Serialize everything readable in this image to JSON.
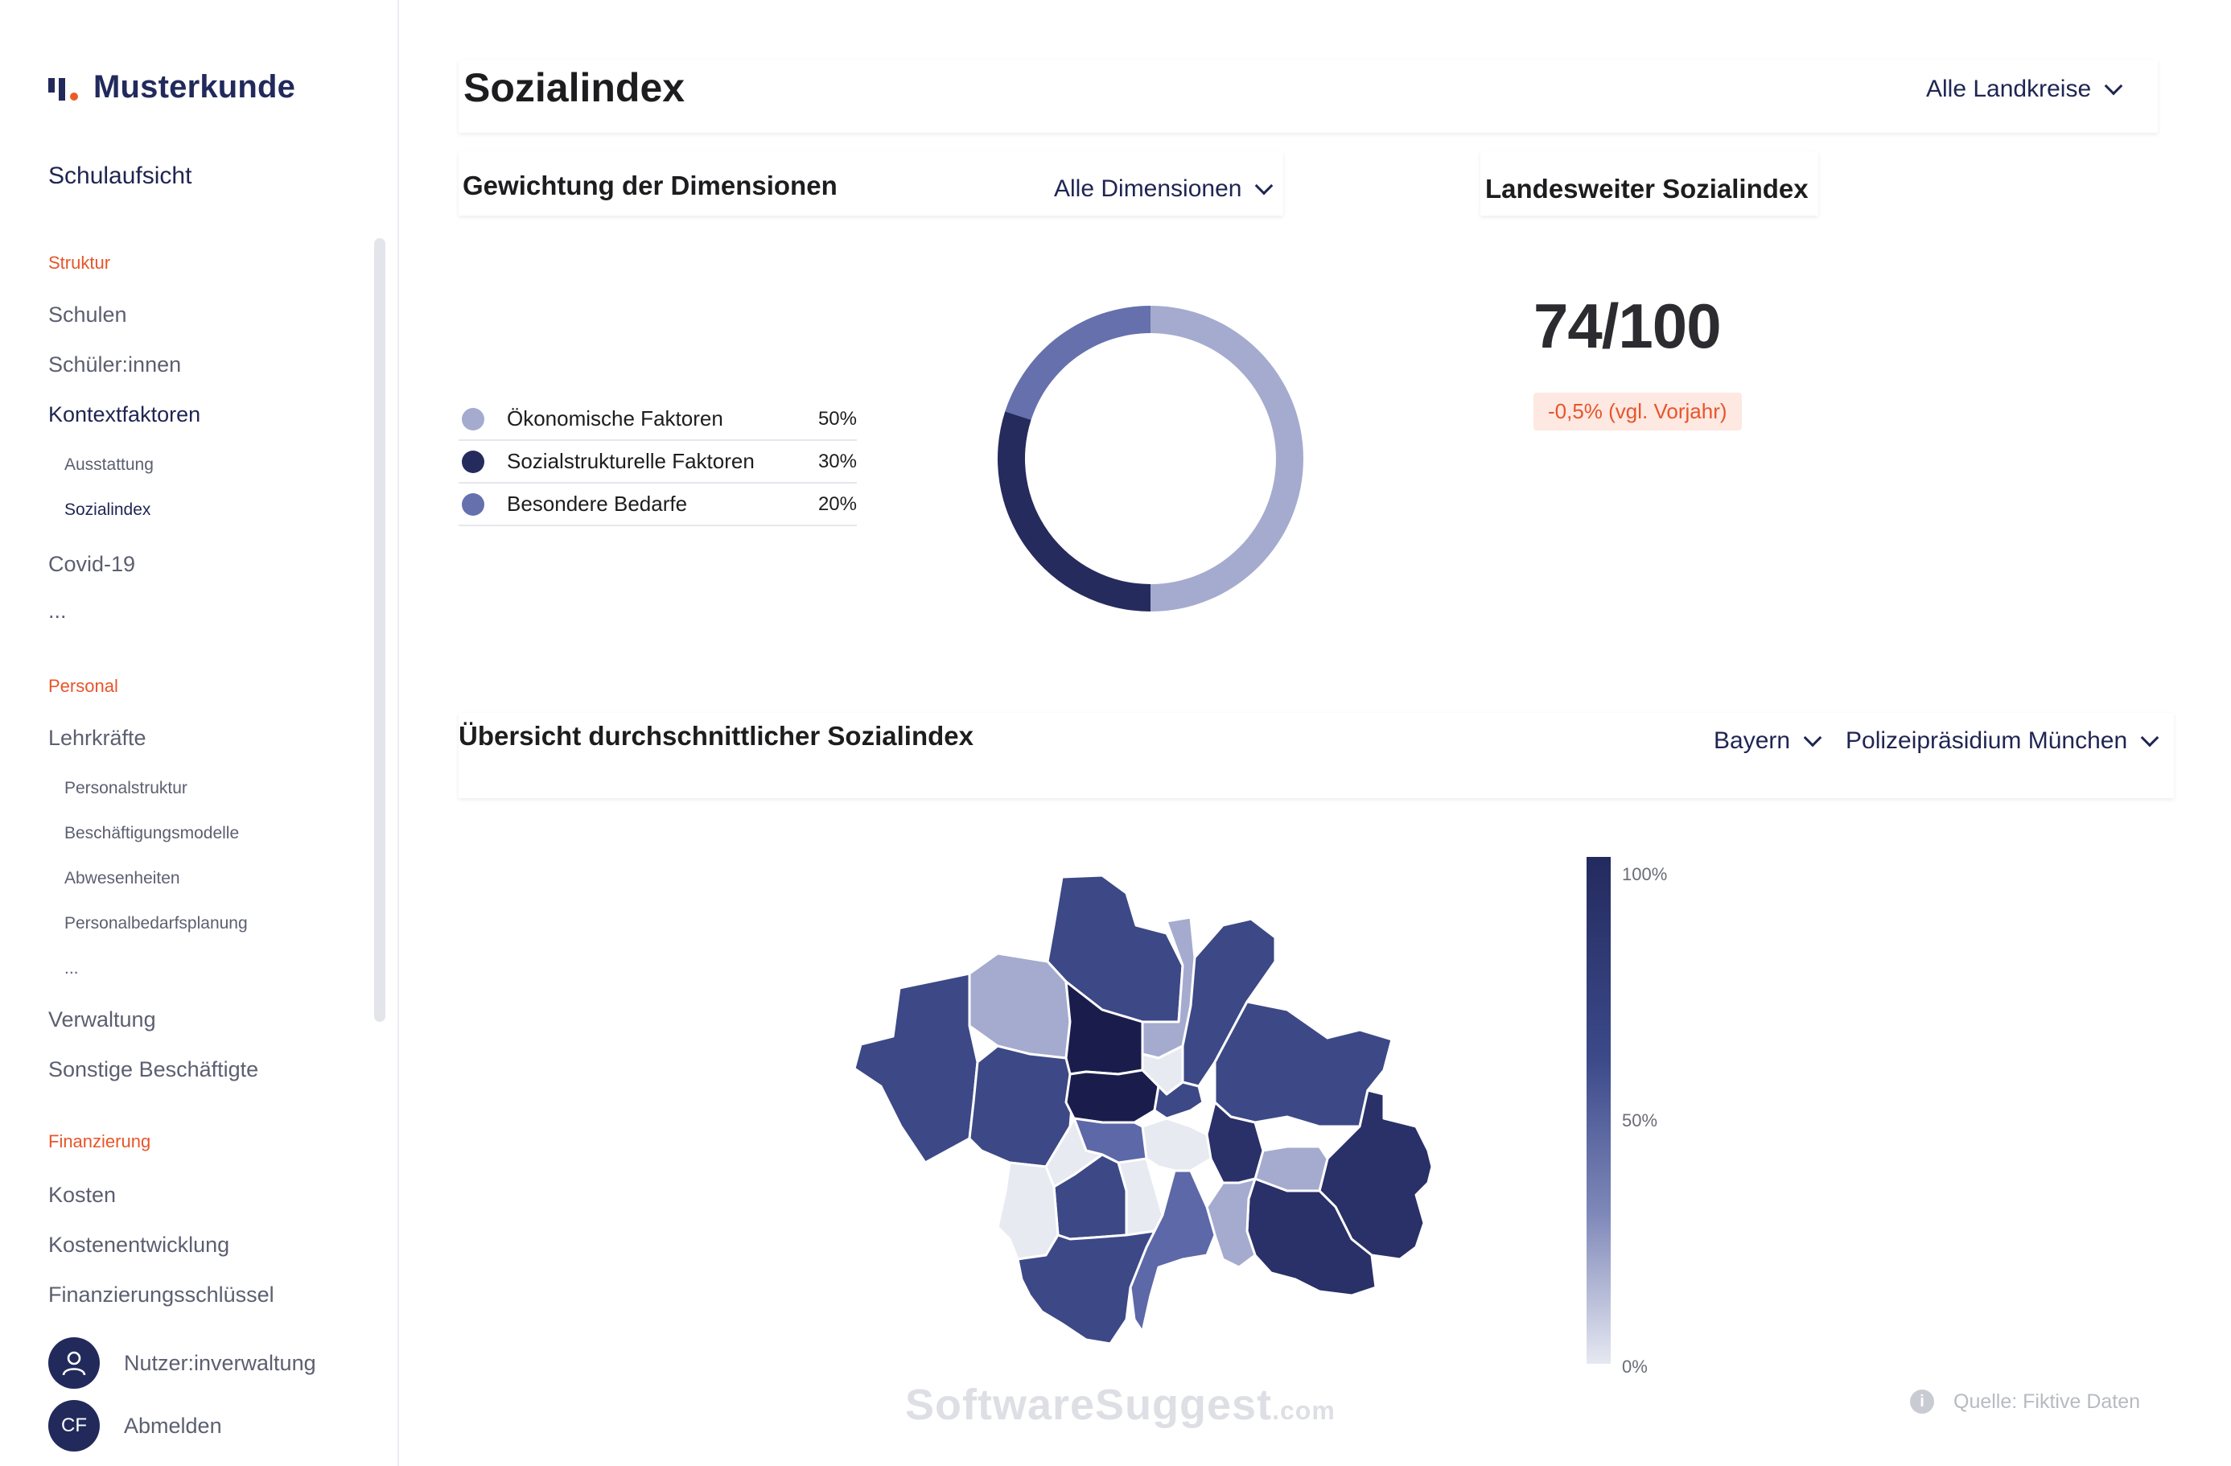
{
  "app": {
    "brand": "Musterkunde",
    "subtitle": "Schulaufsicht"
  },
  "sidebar": {
    "sections": [
      {
        "label": "Struktur",
        "items": [
          {
            "label": "Schulen"
          },
          {
            "label": "Schüler:innen"
          },
          {
            "label": "Kontextfaktoren",
            "subitems": [
              "Ausstattung",
              "Sozialindex"
            ]
          },
          {
            "label": "Covid-19"
          },
          {
            "label": "..."
          }
        ]
      },
      {
        "label": "Personal",
        "items": [
          {
            "label": "Lehrkräfte",
            "subitems": [
              "Personalstruktur",
              "Beschäftigungsmodelle",
              "Abwesenheiten",
              "Personalbedarfsplanung",
              "..."
            ]
          },
          {
            "label": "Verwaltung"
          },
          {
            "label": "Sonstige Beschäftigte"
          }
        ]
      },
      {
        "label": "Finanzierung",
        "items": [
          {
            "label": "Kosten"
          },
          {
            "label": "Kostenentwicklung"
          },
          {
            "label": "Finanzierungsschlüssel"
          }
        ]
      }
    ],
    "user": {
      "user_admin": "Nutzer:inverwaltung",
      "logout": "Abmelden",
      "initials": "CF"
    }
  },
  "header": {
    "title": "Sozialindex",
    "district_filter": "Alle Landkreise"
  },
  "weights": {
    "title": "Gewichtung der Dimensionen",
    "filter": "Alle Dimensionen",
    "legend": [
      {
        "name": "Ökonomische Faktoren",
        "value": "50%",
        "color": "#a5abcf"
      },
      {
        "name": "Sozialstrukturelle Faktoren",
        "value": "30%",
        "color": "#262b5e"
      },
      {
        "name": "Besondere Bedarfe",
        "value": "20%",
        "color": "#6570ad"
      }
    ]
  },
  "chart_data": {
    "type": "pie",
    "categories": [
      "Ökonomische Faktoren",
      "Sozialstrukturelle Faktoren",
      "Besondere Bedarfe"
    ],
    "values": [
      50,
      30,
      20
    ],
    "colors": [
      "#a5abcf",
      "#262b5e",
      "#6570ad"
    ],
    "title": "Gewichtung der Dimensionen"
  },
  "index": {
    "title": "Landesweiter Sozialindex",
    "score": "74/100",
    "delta": "-0,5% (vgl. Vorjahr)"
  },
  "map": {
    "title": "Übersicht durchschnittlicher Sozialindex",
    "filter_state": "Bayern",
    "filter_police": "Polizeipräsidium München",
    "scale_labels": [
      "100%",
      "50%",
      "0%"
    ],
    "source": "Quelle: Fiktive Daten",
    "palette": [
      "#e8eaf2",
      "#a5abcf",
      "#5d68a8",
      "#3d4886",
      "#2a3068",
      "#1a1d4c"
    ]
  },
  "watermark": {
    "main": "SoftwareSuggest",
    "suffix": ".com"
  }
}
